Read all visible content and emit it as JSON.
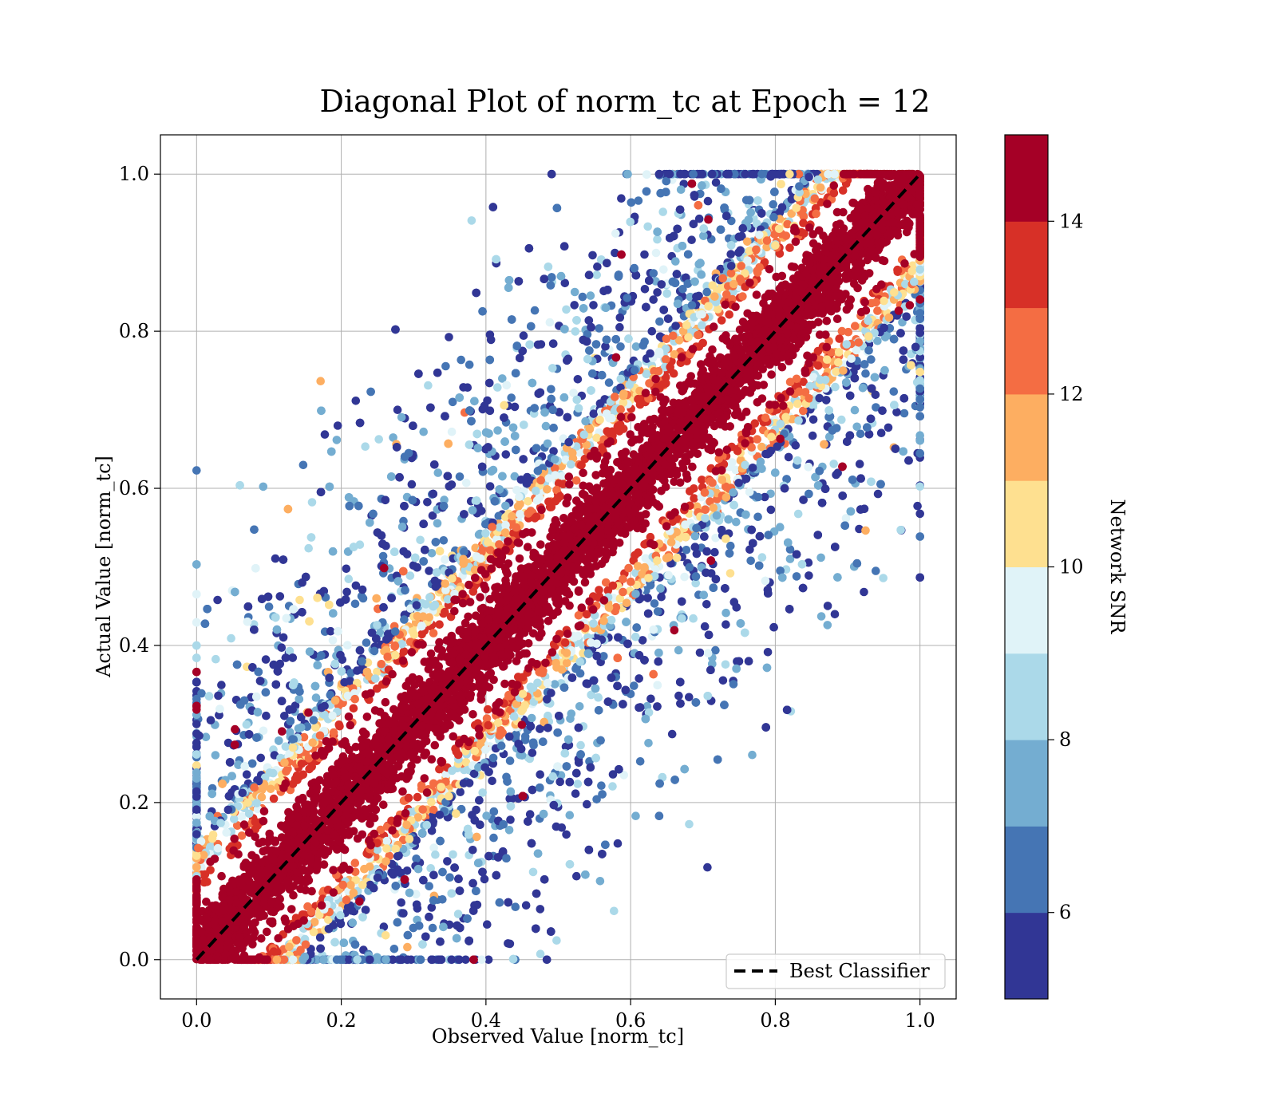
{
  "chart_data": {
    "type": "scatter",
    "title": "Diagonal Plot of norm_tc at Epoch = 12",
    "xlabel": "Observed Value [norm_tc]",
    "ylabel": "Actual Value [norm_tc]",
    "xlim": [
      -0.05,
      1.05
    ],
    "ylim": [
      -0.05,
      1.05
    ],
    "x_ticks": [
      0.0,
      0.2,
      0.4,
      0.6,
      0.8,
      1.0
    ],
    "y_ticks": [
      0.0,
      0.2,
      0.4,
      0.6,
      0.8,
      1.0
    ],
    "x_tick_labels": [
      "0.0",
      "0.2",
      "0.4",
      "0.6",
      "0.8",
      "1.0"
    ],
    "y_tick_labels": [
      "0.0",
      "0.2",
      "0.4",
      "0.6",
      "0.8",
      "1.0"
    ],
    "grid": true,
    "reference_line": {
      "label": "Best Classifier",
      "x": [
        0.0,
        1.0
      ],
      "y": [
        0.0,
        1.0
      ],
      "style": "dashed",
      "color": "#000000"
    },
    "legend": {
      "placement": "lower-right",
      "entries": [
        "Best Classifier"
      ]
    },
    "colorbar": {
      "label": "Network SNR",
      "range": [
        5,
        15
      ],
      "tick_values": [
        6,
        8,
        10,
        12,
        14
      ],
      "tick_labels": [
        "6",
        "8",
        "10",
        "12",
        "14"
      ],
      "colors": [
        "#313695",
        "#4575b4",
        "#74add1",
        "#abd9e9",
        "#e0f3f8",
        "#fee090",
        "#fdae61",
        "#f46d43",
        "#d73027",
        "#a50026"
      ]
    },
    "description_of_points": "Dense band of high-SNR (>=14) points along the diagonal x=y; lower-SNR points scatter widely, bounded to [0,1] on both axes."
  }
}
